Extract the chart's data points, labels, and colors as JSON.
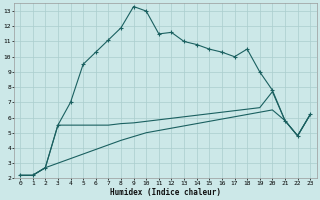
{
  "xlabel": "Humidex (Indice chaleur)",
  "bg_color": "#cce8e8",
  "grid_color": "#aacece",
  "line_color": "#1a6060",
  "xlim": [
    -0.5,
    23.5
  ],
  "ylim": [
    2,
    13.5
  ],
  "xticks": [
    0,
    1,
    2,
    3,
    4,
    5,
    6,
    7,
    8,
    9,
    10,
    11,
    12,
    13,
    14,
    15,
    16,
    17,
    18,
    19,
    20,
    21,
    22,
    23
  ],
  "yticks": [
    2,
    3,
    4,
    5,
    6,
    7,
    8,
    9,
    10,
    11,
    12,
    13
  ],
  "line1_x": [
    0,
    1,
    2,
    3,
    4,
    5,
    6,
    7,
    8,
    9,
    10,
    11,
    12,
    13,
    14,
    15,
    16,
    17,
    18,
    19,
    20,
    21,
    22,
    23
  ],
  "line1_y": [
    2.2,
    2.2,
    2.7,
    5.5,
    7.0,
    9.5,
    10.3,
    11.1,
    11.9,
    13.3,
    13.0,
    11.5,
    11.6,
    11.0,
    10.8,
    10.5,
    10.3,
    10.0,
    10.5,
    9.0,
    7.8,
    5.8,
    4.8,
    6.2
  ],
  "line2_x": [
    0,
    1,
    2,
    3,
    4,
    5,
    6,
    7,
    8,
    9,
    10,
    11,
    12,
    13,
    14,
    15,
    16,
    17,
    18,
    19,
    20,
    21,
    22,
    23
  ],
  "line2_y": [
    2.2,
    2.2,
    2.7,
    5.5,
    5.5,
    5.5,
    5.5,
    5.5,
    5.6,
    5.65,
    5.75,
    5.85,
    5.95,
    6.05,
    6.15,
    6.25,
    6.35,
    6.45,
    6.55,
    6.65,
    7.7,
    5.8,
    4.8,
    6.2
  ],
  "line3_x": [
    0,
    1,
    2,
    3,
    4,
    5,
    6,
    7,
    8,
    9,
    10,
    11,
    12,
    13,
    14,
    15,
    16,
    17,
    18,
    19,
    20,
    21,
    22,
    23
  ],
  "line3_y": [
    2.2,
    2.2,
    2.7,
    3.0,
    3.3,
    3.6,
    3.9,
    4.2,
    4.5,
    4.75,
    5.0,
    5.15,
    5.3,
    5.45,
    5.6,
    5.75,
    5.9,
    6.05,
    6.2,
    6.35,
    6.5,
    5.8,
    4.8,
    6.2
  ]
}
